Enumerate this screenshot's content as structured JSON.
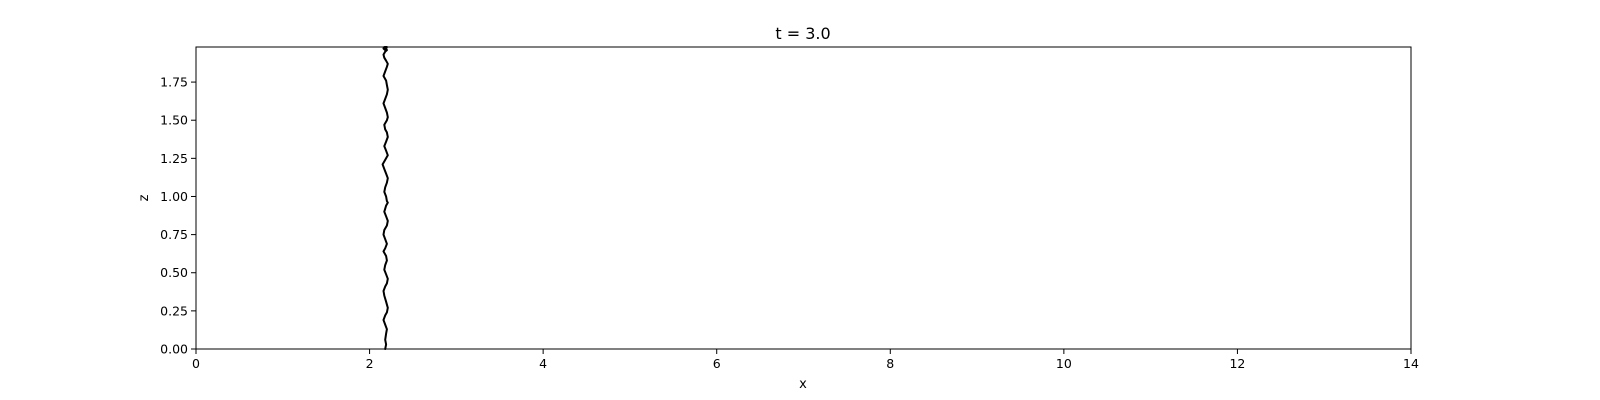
{
  "chart_data": {
    "type": "line",
    "title": "t = 3.0",
    "xlabel": "x",
    "ylabel": "z",
    "xlim": [
      0,
      14
    ],
    "ylim": [
      0,
      1.98
    ],
    "xticks": [
      0,
      2,
      4,
      6,
      8,
      10,
      12,
      14
    ],
    "yticks": [
      0.0,
      0.25,
      0.5,
      0.75,
      1.0,
      1.25,
      1.5,
      1.75
    ],
    "xtick_labels": [
      "0",
      "2",
      "4",
      "6",
      "8",
      "10",
      "12",
      "14"
    ],
    "ytick_labels": [
      "0.00",
      "0.25",
      "0.50",
      "0.75",
      "1.00",
      "1.25",
      "1.50",
      "1.75"
    ],
    "grid": false,
    "legend": "none",
    "line_color": "#000000",
    "series": [
      {
        "x": [
          2.18,
          2.19,
          2.18,
          2.19,
          2.2,
          2.18,
          2.16,
          2.18,
          2.2,
          2.21,
          2.19,
          2.17,
          2.16,
          2.18,
          2.2,
          2.21,
          2.19,
          2.17,
          2.18,
          2.2,
          2.19,
          2.16,
          2.18,
          2.2,
          2.18,
          2.16,
          2.17,
          2.2,
          2.21,
          2.19,
          2.17,
          2.18,
          2.19,
          2.21,
          2.2,
          2.19,
          2.17,
          2.18,
          2.2,
          2.21,
          2.19,
          2.17,
          2.15,
          2.18,
          2.21,
          2.19,
          2.17,
          2.19,
          2.21,
          2.2,
          2.18,
          2.17,
          2.2,
          2.21,
          2.2,
          2.18,
          2.16,
          2.18,
          2.2,
          2.21,
          2.2,
          2.19,
          2.16,
          2.18,
          2.2,
          2.21,
          2.19,
          2.17,
          2.16,
          2.18,
          2.2,
          2.19,
          2.17,
          2.16,
          2.18,
          2.19,
          2.2,
          2.18
        ],
        "y": [
          0.0,
          0.03,
          0.06,
          0.1,
          0.13,
          0.16,
          0.19,
          0.22,
          0.24,
          0.27,
          0.31,
          0.35,
          0.38,
          0.41,
          0.43,
          0.46,
          0.49,
          0.52,
          0.55,
          0.58,
          0.61,
          0.64,
          0.66,
          0.69,
          0.72,
          0.75,
          0.78,
          0.81,
          0.84,
          0.87,
          0.9,
          0.92,
          0.94,
          0.96,
          0.97,
          1.0,
          1.03,
          1.06,
          1.09,
          1.12,
          1.15,
          1.18,
          1.21,
          1.24,
          1.27,
          1.3,
          1.33,
          1.36,
          1.39,
          1.42,
          1.44,
          1.47,
          1.5,
          1.52,
          1.55,
          1.58,
          1.61,
          1.64,
          1.67,
          1.7,
          1.73,
          1.76,
          1.79,
          1.82,
          1.85,
          1.87,
          1.89,
          1.91,
          1.93,
          1.95,
          1.96,
          1.97,
          1.98,
          1.97,
          1.96,
          1.97,
          1.98,
          1.98
        ]
      }
    ]
  }
}
